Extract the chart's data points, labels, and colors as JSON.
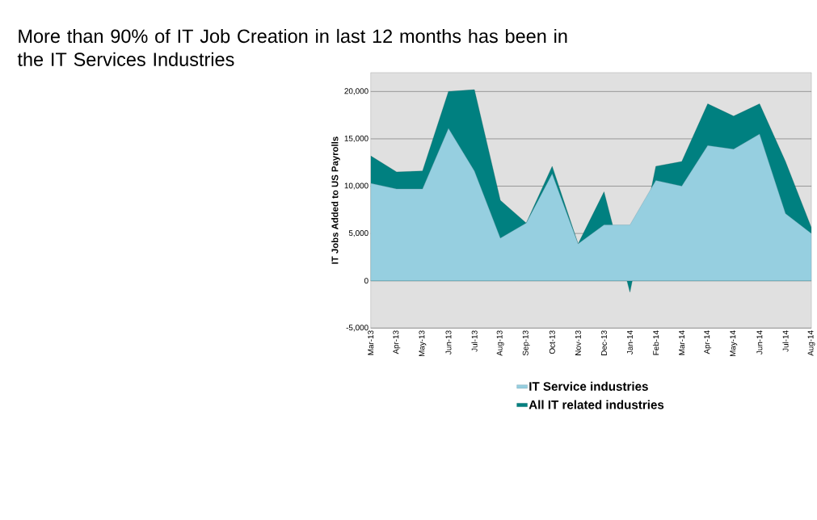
{
  "chart_data": {
    "type": "area",
    "title": "More than 90% of IT Job Creation in last 12 months has been in the IT Services Industries",
    "ylabel": "IT Jobs Added to US Payrolls",
    "categories": [
      "Mar-13",
      "Apr-13",
      "May-13",
      "Jun-13",
      "Jul-13",
      "Aug-13",
      "Sep-13",
      "Oct-13",
      "Nov-13",
      "Dec-13",
      "Jan-14",
      "Feb-14",
      "Mar-14",
      "Apr-14",
      "May-14",
      "Jun-14",
      "Jul-14",
      "Aug-14"
    ],
    "series": [
      {
        "name": "IT Service industries",
        "color": "#96cfe0",
        "values": [
          10300,
          9700,
          9700,
          16100,
          11600,
          4500,
          6100,
          11300,
          3900,
          5900,
          5900,
          10600,
          10000,
          14300,
          13900,
          15500,
          7100,
          5000
        ]
      },
      {
        "name": "All IT related industries",
        "color": "#008080",
        "values": [
          13200,
          11500,
          11600,
          20000,
          20200,
          8500,
          6100,
          12100,
          3900,
          9400,
          -1200,
          12100,
          12600,
          18700,
          17400,
          18700,
          12600,
          5600
        ]
      }
    ],
    "ylim": [
      -5000,
      22000
    ],
    "yticks": [
      {
        "value": -5000,
        "label": "-5,000"
      },
      0,
      {
        "value": 5000,
        "label": "5,000"
      },
      {
        "value": 10000,
        "label": "10,000"
      },
      {
        "value": 15000,
        "label": "15,000"
      },
      {
        "value": 20000,
        "label": "20,000"
      }
    ],
    "grid": "y",
    "legend": "bottom"
  }
}
